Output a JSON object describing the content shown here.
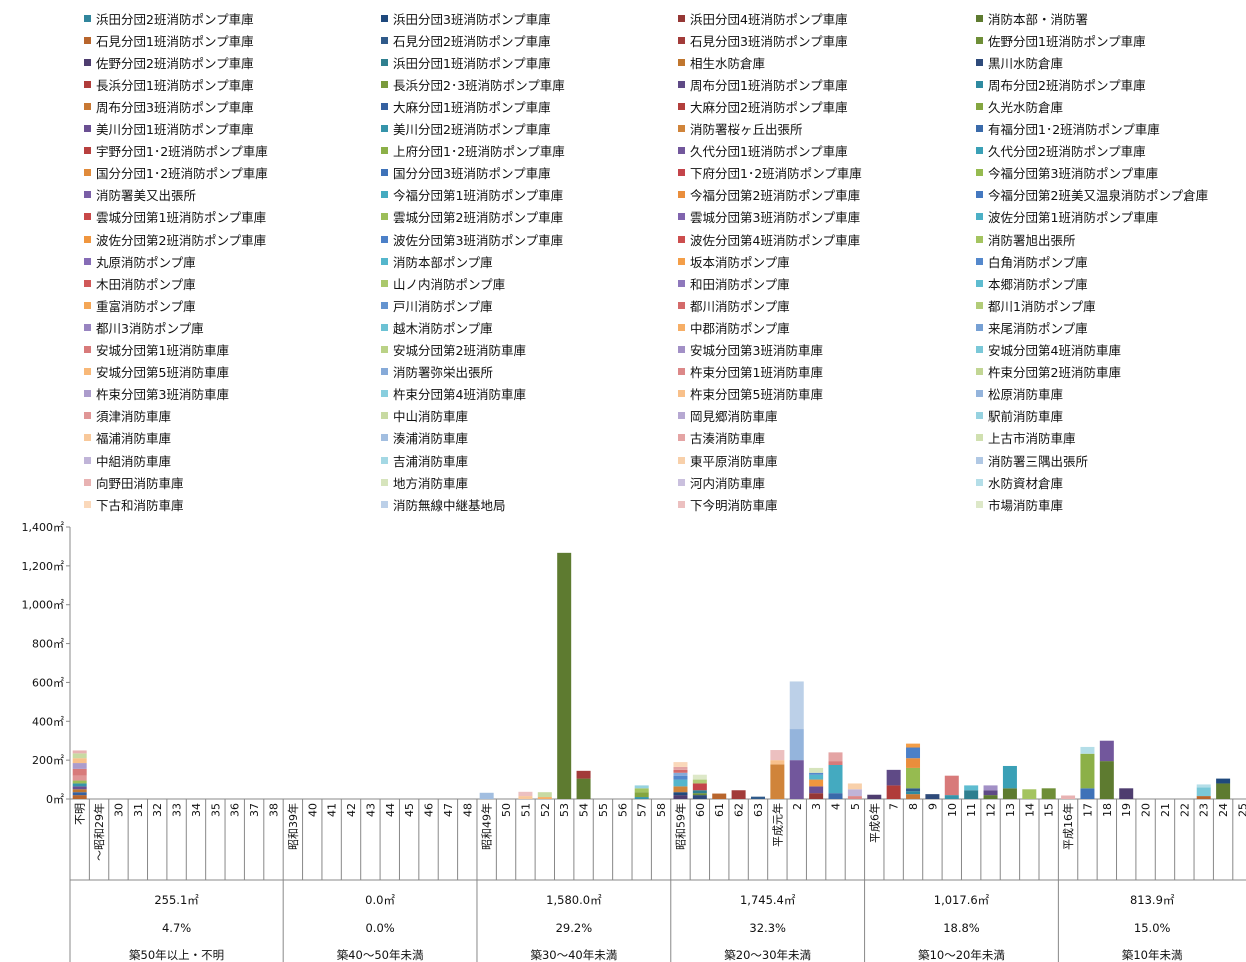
{
  "legend": [
    {
      "name": "浜田分団2班消防ポンプ車庫",
      "color": "#31859c"
    },
    {
      "name": "浜田分団3班消防ポンプ車庫",
      "color": "#1f497d"
    },
    {
      "name": "浜田分団4班消防ポンプ車庫",
      "color": "#953735"
    },
    {
      "name": "消防本部・消防署",
      "color": "#5e7b30"
    },
    {
      "name": "石見分団1班消防ポンプ車庫",
      "color": "#b8652c"
    },
    {
      "name": "石見分団2班消防ポンプ車庫",
      "color": "#2f5a8a"
    },
    {
      "name": "石見分団3班消防ポンプ車庫",
      "color": "#a23b39"
    },
    {
      "name": "佐野分団1班消防ポンプ車庫",
      "color": "#6e8e37"
    },
    {
      "name": "佐野分団2班消防ポンプ車庫",
      "color": "#4e3d6f"
    },
    {
      "name": "浜田分団1班消防ポンプ車庫",
      "color": "#2f7f8f"
    },
    {
      "name": "相生水防倉庫",
      "color": "#c0762e"
    },
    {
      "name": "黒川水防倉庫",
      "color": "#2e4a7a"
    },
    {
      "name": "長浜分団1班消防ポンプ車庫",
      "color": "#b03c3a"
    },
    {
      "name": "長浜分団2･3班消防ポンプ車庫",
      "color": "#7a9a3c"
    },
    {
      "name": "周布分団1班消防ポンプ車庫",
      "color": "#5f4a86"
    },
    {
      "name": "周布分団2班消防ポンプ車庫",
      "color": "#2e8aa0"
    },
    {
      "name": "周布分団3班消防ポンプ車庫",
      "color": "#c87833"
    },
    {
      "name": "大麻分団1班消防ポンプ車庫",
      "color": "#3561a0"
    },
    {
      "name": "大麻分団2班消防ポンプ車庫",
      "color": "#b23e3c"
    },
    {
      "name": "久光水防倉庫",
      "color": "#84a640"
    },
    {
      "name": "美川分団1班消防ポンプ車庫",
      "color": "#6a4f92"
    },
    {
      "name": "美川分団2班消防ポンプ車庫",
      "color": "#3594aa"
    },
    {
      "name": "消防署桜ヶ丘出張所",
      "color": "#d0843a"
    },
    {
      "name": "有福分団1･2班消防ポンプ車庫",
      "color": "#3a6aaa"
    },
    {
      "name": "宇野分団1･2班消防ポンプ車庫",
      "color": "#b8403e"
    },
    {
      "name": "上府分団1･2班消防ポンプ車庫",
      "color": "#8cb048"
    },
    {
      "name": "久代分団1班消防ポンプ車庫",
      "color": "#72579c"
    },
    {
      "name": "久代分団2班消防ポンプ車庫",
      "color": "#3aa0b6"
    },
    {
      "name": "国分分団1･2班消防ポンプ車庫",
      "color": "#e08a3a"
    },
    {
      "name": "国分分団3班消防ポンプ車庫",
      "color": "#3e72b8"
    },
    {
      "name": "下府分団1･2班消防ポンプ車庫",
      "color": "#c4444a"
    },
    {
      "name": "今福分団第3班消防ポンプ車庫",
      "color": "#96bb50"
    },
    {
      "name": "消防署美又出張所",
      "color": "#7a5ea6"
    },
    {
      "name": "今福分団第1班消防ポンプ車庫",
      "color": "#44aac0"
    },
    {
      "name": "今福分団第2班消防ポンプ車庫",
      "color": "#ea8e3c"
    },
    {
      "name": "今福分団第2班美又温泉消防ポンプ倉庫",
      "color": "#4478c0"
    },
    {
      "name": "雲城分団第1班消防ポンプ車庫",
      "color": "#c84848"
    },
    {
      "name": "雲城分団第2班消防ポンプ車庫",
      "color": "#9cbe58"
    },
    {
      "name": "雲城分団第3班消防ポンプ車庫",
      "color": "#8064ae"
    },
    {
      "name": "波佐分団第1班消防ポンプ車庫",
      "color": "#4cb0c6"
    },
    {
      "name": "波佐分団第2班消防ポンプ車庫",
      "color": "#f0963e"
    },
    {
      "name": "波佐分団第3班消防ポンプ車庫",
      "color": "#4c80c8"
    },
    {
      "name": "波佐分団第4班消防ポンプ車庫",
      "color": "#cc4e4e"
    },
    {
      "name": "消防署旭出張所",
      "color": "#a4c460"
    },
    {
      "name": "丸原消防ポンプ庫",
      "color": "#866cb6"
    },
    {
      "name": "消防本部ポンプ庫",
      "color": "#54b6cc"
    },
    {
      "name": "坂本消防ポンプ庫",
      "color": "#f49e48"
    },
    {
      "name": "白角消防ポンプ庫",
      "color": "#5488cc"
    },
    {
      "name": "木田消防ポンプ庫",
      "color": "#d05858"
    },
    {
      "name": "山ノ内消防ポンプ庫",
      "color": "#aac86c"
    },
    {
      "name": "和田消防ポンプ庫",
      "color": "#8e78bc"
    },
    {
      "name": "本郷消防ポンプ庫",
      "color": "#5ebcd0"
    },
    {
      "name": "重富消防ポンプ庫",
      "color": "#f4a656"
    },
    {
      "name": "戸川消防ポンプ庫",
      "color": "#6494d0"
    },
    {
      "name": "都川消防ポンプ庫",
      "color": "#d46a6a"
    },
    {
      "name": "都川1消防ポンプ庫",
      "color": "#b2cc78"
    },
    {
      "name": "都川3消防ポンプ庫",
      "color": "#9884c0"
    },
    {
      "name": "越木消防ポンプ庫",
      "color": "#6cc2d4"
    },
    {
      "name": "中郡消防ポンプ庫",
      "color": "#f6ae66"
    },
    {
      "name": "来尾消防ポンプ庫",
      "color": "#76a0d4"
    },
    {
      "name": "安城分団第1班消防車庫",
      "color": "#d87a7a"
    },
    {
      "name": "安城分団第2班消防車庫",
      "color": "#bad286"
    },
    {
      "name": "安城分団第3班消防車庫",
      "color": "#a290c6"
    },
    {
      "name": "安城分団第4班消防車庫",
      "color": "#7ac8d8"
    },
    {
      "name": "安城分団第5班消防車庫",
      "color": "#f8b878"
    },
    {
      "name": "消防署弥栄出張所",
      "color": "#86aad8"
    },
    {
      "name": "杵束分団第1班消防車庫",
      "color": "#dc8888"
    },
    {
      "name": "杵束分団第2班消防車庫",
      "color": "#c2d694"
    },
    {
      "name": "杵束分団第3班消防車庫",
      "color": "#ac9ccc"
    },
    {
      "name": "杵束分団第4班消防車庫",
      "color": "#88cede"
    },
    {
      "name": "杵束分団第5班消防車庫",
      "color": "#f8c08a"
    },
    {
      "name": "松原消防車庫",
      "color": "#94b4dc"
    },
    {
      "name": "須津消防車庫",
      "color": "#e09696"
    },
    {
      "name": "中山消防車庫",
      "color": "#c8daa2"
    },
    {
      "name": "岡見郷消防車庫",
      "color": "#b6a8d2"
    },
    {
      "name": "駅前消防車庫",
      "color": "#96d2e0"
    },
    {
      "name": "福浦消防車庫",
      "color": "#f8c89a"
    },
    {
      "name": "湊浦消防車庫",
      "color": "#a2bee0"
    },
    {
      "name": "古湊消防車庫",
      "color": "#e4a4a4"
    },
    {
      "name": "上古市消防車庫",
      "color": "#d0e0b0"
    },
    {
      "name": "中組消防車庫",
      "color": "#c0b4d8"
    },
    {
      "name": "吉浦消防車庫",
      "color": "#a4d8e4"
    },
    {
      "name": "東平原消防車庫",
      "color": "#f8d0aa"
    },
    {
      "name": "消防署三隅出張所",
      "color": "#b0c8e4"
    },
    {
      "name": "向野田消防車庫",
      "color": "#e8b2b2"
    },
    {
      "name": "地方消防車庫",
      "color": "#d6e4bc"
    },
    {
      "name": "河内消防車庫",
      "color": "#cac0de"
    },
    {
      "name": "水防資材倉庫",
      "color": "#b4dee8"
    },
    {
      "name": "下古和消防車庫",
      "color": "#fad8ba"
    },
    {
      "name": "消防無線中継基地局",
      "color": "#bcd0e8"
    },
    {
      "name": "下今明消防車庫",
      "color": "#ecc0c0"
    },
    {
      "name": "市場消防車庫",
      "color": "#dde8c8"
    }
  ],
  "chart_data": {
    "type": "bar",
    "stacked": true,
    "ylim": [
      0,
      1400
    ],
    "yticks": [
      "0㎡",
      "200㎡",
      "400㎡",
      "600㎡",
      "800㎡",
      "1,000㎡",
      "1,200㎡",
      "1,400㎡"
    ],
    "grid": false,
    "legend_position": "top",
    "categories": [
      "不明",
      "～昭和29年",
      "30",
      "31",
      "32",
      "33",
      "34",
      "35",
      "36",
      "37",
      "38",
      "昭和39年",
      "40",
      "41",
      "42",
      "43",
      "44",
      "45",
      "46",
      "47",
      "48",
      "昭和49年",
      "50",
      "51",
      "52",
      "53",
      "54",
      "55",
      "56",
      "57",
      "58",
      "昭和59年",
      "60",
      "61",
      "62",
      "63",
      "平成元年",
      "2",
      "3",
      "4",
      "5",
      "平成6年",
      "7",
      "8",
      "9",
      "10",
      "11",
      "12",
      "13",
      "14",
      "15",
      "平成16年",
      "17",
      "18",
      "19",
      "20",
      "21",
      "22",
      "23",
      "24",
      "25"
    ],
    "bars": [
      {
        "category": "不明",
        "segments": [
          {
            "color": "#b8652c",
            "value": 20
          },
          {
            "color": "#3561a0",
            "value": 15
          },
          {
            "color": "#c0762e",
            "value": 15
          },
          {
            "color": "#6a4f92",
            "value": 15
          },
          {
            "color": "#3594aa",
            "value": 15
          },
          {
            "color": "#9cbe58",
            "value": 15
          },
          {
            "color": "#e09696",
            "value": 25
          },
          {
            "color": "#d87a7a",
            "value": 35
          },
          {
            "color": "#ac9ccc",
            "value": 30
          },
          {
            "color": "#f8c08a",
            "value": 25
          },
          {
            "color": "#c8daa2",
            "value": 25
          },
          {
            "color": "#e8b2b2",
            "value": 15
          }
        ]
      },
      {
        "category": "昭和49年",
        "segments": [
          {
            "color": "#a2bee0",
            "value": 32
          }
        ]
      },
      {
        "category": "51",
        "segments": [
          {
            "color": "#f8c89a",
            "value": 15
          },
          {
            "color": "#ecc0c0",
            "value": 22
          }
        ]
      },
      {
        "category": "52",
        "segments": [
          {
            "color": "#f6ae66",
            "value": 10
          },
          {
            "color": "#c8daa2",
            "value": 25
          }
        ]
      },
      {
        "category": "53",
        "segments": [
          {
            "color": "#5e7b30",
            "value": 1267
          }
        ]
      },
      {
        "category": "54",
        "segments": [
          {
            "color": "#5e7b30",
            "value": 105
          },
          {
            "color": "#a23b39",
            "value": 40
          }
        ]
      },
      {
        "category": "57",
        "segments": [
          {
            "color": "#3594aa",
            "value": 10
          },
          {
            "color": "#84a640",
            "value": 25
          },
          {
            "color": "#a4c460",
            "value": 20
          },
          {
            "color": "#96d2e0",
            "value": 15
          }
        ]
      },
      {
        "category": "昭和59年",
        "segments": [
          {
            "color": "#4e3d6f",
            "value": 20
          },
          {
            "color": "#1f497d",
            "value": 15
          },
          {
            "color": "#d0843a",
            "value": 30
          },
          {
            "color": "#54b6cc",
            "value": 35
          },
          {
            "color": "#5488cc",
            "value": 20
          },
          {
            "color": "#86aad8",
            "value": 15
          },
          {
            "color": "#d46a6a",
            "value": 15
          },
          {
            "color": "#e4a4a4",
            "value": 15
          },
          {
            "color": "#fad8ba",
            "value": 25
          }
        ]
      },
      {
        "category": "60",
        "segments": [
          {
            "color": "#2e4a7a",
            "value": 20
          },
          {
            "color": "#6e8e37",
            "value": 10
          },
          {
            "color": "#2f7f8f",
            "value": 15
          },
          {
            "color": "#c4444a",
            "value": 35
          },
          {
            "color": "#b2cc78",
            "value": 20
          },
          {
            "color": "#dde8c8",
            "value": 25
          }
        ]
      },
      {
        "category": "61",
        "segments": [
          {
            "color": "#b8652c",
            "value": 28
          }
        ]
      },
      {
        "category": "62",
        "segments": [
          {
            "color": "#a23b39",
            "value": 45
          }
        ]
      },
      {
        "category": "63",
        "segments": [
          {
            "color": "#2f5a8a",
            "value": 12
          }
        ]
      },
      {
        "category": "平成元年",
        "segments": [
          {
            "color": "#d0843a",
            "value": 178
          },
          {
            "color": "#f8c08a",
            "value": 22
          },
          {
            "color": "#ecc0c0",
            "value": 52
          }
        ]
      },
      {
        "category": "2",
        "segments": [
          {
            "color": "#72579c",
            "value": 200
          },
          {
            "color": "#94b4dc",
            "value": 160
          },
          {
            "color": "#bcd0e8",
            "value": 245
          }
        ]
      },
      {
        "category": "3",
        "segments": [
          {
            "color": "#953735",
            "value": 30
          },
          {
            "color": "#6a4f92",
            "value": 35
          },
          {
            "color": "#f0963e",
            "value": 35
          },
          {
            "color": "#54b6cc",
            "value": 25
          },
          {
            "color": "#5488cc",
            "value": 10
          },
          {
            "color": "#d6e4bc",
            "value": 25
          }
        ]
      },
      {
        "category": "4",
        "segments": [
          {
            "color": "#3a6aaa",
            "value": 30
          },
          {
            "color": "#44aac0",
            "value": 145
          },
          {
            "color": "#d87a7a",
            "value": 20
          },
          {
            "color": "#e4a4a4",
            "value": 45
          }
        ]
      },
      {
        "category": "5",
        "segments": [
          {
            "color": "#dc8888",
            "value": 15
          },
          {
            "color": "#c0b4d8",
            "value": 35
          },
          {
            "color": "#f8d0aa",
            "value": 30
          }
        ]
      },
      {
        "category": "平成6年",
        "segments": [
          {
            "color": "#4e3d6f",
            "value": 22
          }
        ]
      },
      {
        "category": "7",
        "segments": [
          {
            "color": "#b03c3a",
            "value": 70
          },
          {
            "color": "#5f4a86",
            "value": 80
          }
        ]
      },
      {
        "category": "8",
        "segments": [
          {
            "color": "#c87833",
            "value": 25
          },
          {
            "color": "#2e8aa0",
            "value": 15
          },
          {
            "color": "#2f5a8a",
            "value": 15
          },
          {
            "color": "#96bb50",
            "value": 105
          },
          {
            "color": "#ea8e3c",
            "value": 50
          },
          {
            "color": "#4c80c8",
            "value": 55
          },
          {
            "color": "#f49e48",
            "value": 20
          }
        ]
      },
      {
        "category": "9",
        "segments": [
          {
            "color": "#2e4a7a",
            "value": 25
          }
        ]
      },
      {
        "category": "10",
        "segments": [
          {
            "color": "#3594aa",
            "value": 20
          },
          {
            "color": "#d87a7a",
            "value": 100
          }
        ]
      },
      {
        "category": "11",
        "segments": [
          {
            "color": "#2f7f8f",
            "value": 45
          },
          {
            "color": "#5ebcd0",
            "value": 25
          }
        ]
      },
      {
        "category": "12",
        "segments": [
          {
            "color": "#5e7b30",
            "value": 20
          },
          {
            "color": "#5f4a86",
            "value": 25
          },
          {
            "color": "#a290c6",
            "value": 25
          }
        ]
      },
      {
        "category": "13",
        "segments": [
          {
            "color": "#5e7b30",
            "value": 55
          },
          {
            "color": "#3aa0b6",
            "value": 115
          }
        ]
      },
      {
        "category": "14",
        "segments": [
          {
            "color": "#a4c460",
            "value": 50
          }
        ]
      },
      {
        "category": "15",
        "segments": [
          {
            "color": "#6e8e37",
            "value": 55
          }
        ]
      },
      {
        "category": "平成16年",
        "segments": [
          {
            "color": "#e8b2b2",
            "value": 18
          }
        ]
      },
      {
        "category": "17",
        "segments": [
          {
            "color": "#3e72b8",
            "value": 55
          },
          {
            "color": "#8cb048",
            "value": 178
          },
          {
            "color": "#b4dee8",
            "value": 35
          }
        ]
      },
      {
        "category": "18",
        "segments": [
          {
            "color": "#5e7b30",
            "value": 195
          },
          {
            "color": "#72579c",
            "value": 105
          }
        ]
      },
      {
        "category": "19",
        "segments": [
          {
            "color": "#4e3d6f",
            "value": 55
          }
        ]
      },
      {
        "category": "23",
        "segments": [
          {
            "color": "#b8652c",
            "value": 15
          },
          {
            "color": "#7ac8d8",
            "value": 45
          },
          {
            "color": "#b4dee8",
            "value": 15
          }
        ]
      },
      {
        "category": "24",
        "segments": [
          {
            "color": "#5e7b30",
            "value": 80
          },
          {
            "color": "#1f497d",
            "value": 25
          }
        ]
      }
    ],
    "summary": [
      {
        "area": "255.1㎡",
        "share": "4.7%",
        "label": "築50年以上・不明"
      },
      {
        "area": "0.0㎡",
        "share": "0.0%",
        "label": "築40～50年未満"
      },
      {
        "area": "1,580.0㎡",
        "share": "29.2%",
        "label": "築30～40年未満"
      },
      {
        "area": "1,745.4㎡",
        "share": "32.3%",
        "label": "築20～30年未満"
      },
      {
        "area": "1,017.6㎡",
        "share": "18.8%",
        "label": "築10～20年未満"
      },
      {
        "area": "813.9㎡",
        "share": "15.0%",
        "label": "築10年未満"
      }
    ]
  }
}
